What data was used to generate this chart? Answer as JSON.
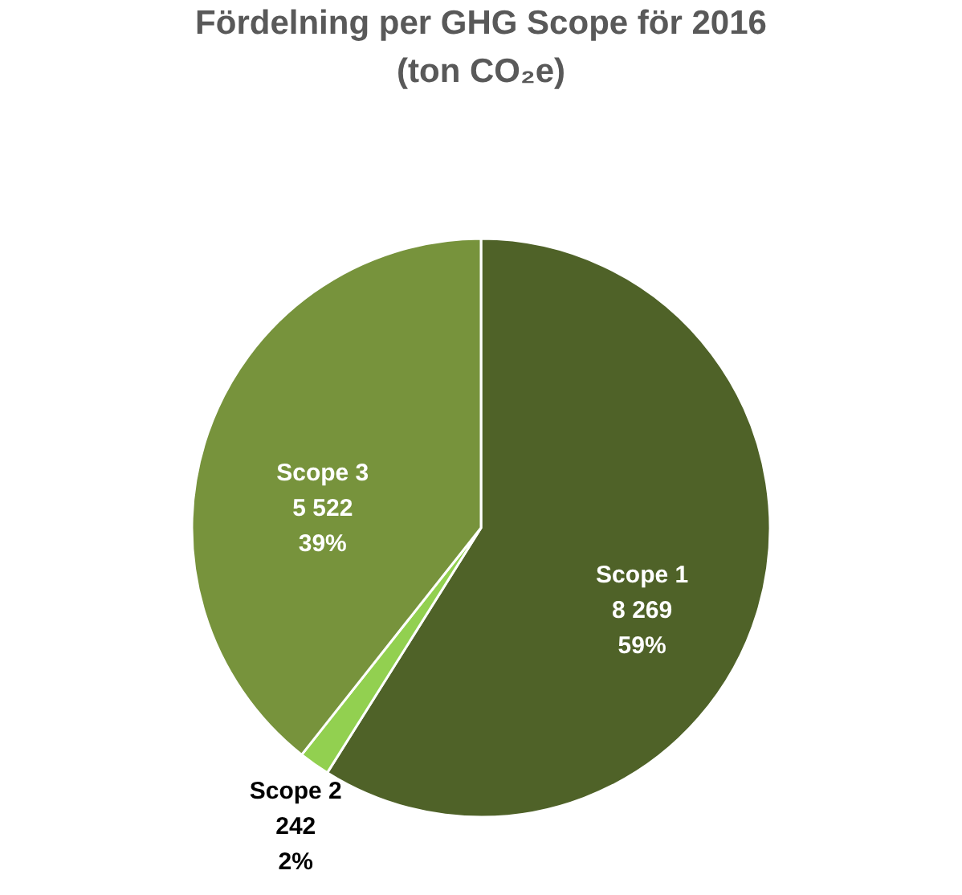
{
  "chart_data": {
    "type": "pie",
    "title": "Fördelning per GHG Scope för 2016\n(ton CO₂e)",
    "categories": [
      "Scope 1",
      "Scope 2",
      "Scope 3"
    ],
    "values": [
      8269,
      242,
      5522
    ],
    "colors": [
      "#4f6228",
      "#92d050",
      "#77933c"
    ],
    "value_labels": [
      "8 269\n59%",
      "242\n2%",
      "5 522\n39%"
    ],
    "legend": false
  }
}
